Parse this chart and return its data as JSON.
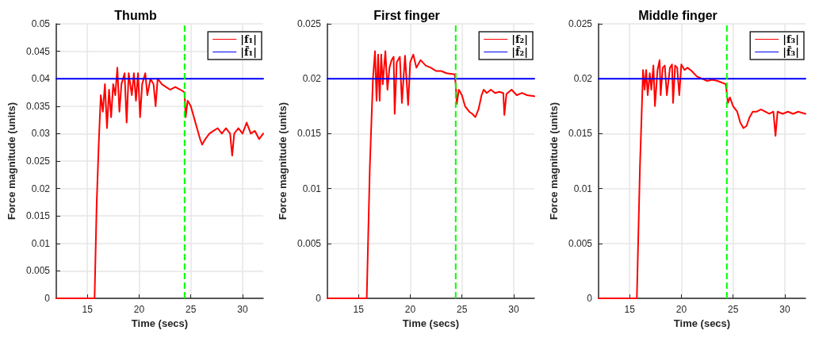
{
  "chart_data": [
    {
      "type": "line",
      "title": "Thumb",
      "xlabel": "Time (secs)",
      "ylabel": "Force magnitude (units)",
      "xlim": [
        12,
        32
      ],
      "xticks": [
        15,
        20,
        25,
        30
      ],
      "ylim": [
        0,
        0.05
      ],
      "yticks": [
        0,
        0.005,
        0.01,
        0.015,
        0.02,
        0.025,
        0.03,
        0.035,
        0.04,
        0.045,
        0.05
      ],
      "grid": true,
      "legend": "top right",
      "marker": "none",
      "line_style": "solid",
      "ref_lines": [
        {
          "axis": "x",
          "value": 24.4,
          "color": "#00ff00",
          "line_style": "dashed"
        }
      ],
      "series": [
        {
          "name": "|f₁|",
          "color": "#ff0000",
          "x": [
            12,
            15.7,
            15.9,
            16.1,
            16.3,
            16.5,
            16.7,
            16.9,
            17.1,
            17.3,
            17.5,
            17.7,
            17.9,
            18.1,
            18.3,
            18.6,
            18.8,
            19.0,
            19.3,
            19.5,
            19.7,
            19.9,
            20.1,
            20.3,
            20.6,
            20.8,
            21.1,
            21.4,
            21.6,
            21.8,
            22.2,
            22.6,
            23.0,
            23.5,
            24.0,
            24.4,
            24.5,
            24.7,
            25.0,
            25.3,
            25.6,
            25.9,
            26.1,
            26.4,
            26.8,
            27.2,
            27.6,
            28.0,
            28.4,
            28.8,
            29.0,
            29.2,
            29.6,
            30.0,
            30.4,
            30.8,
            31.2,
            31.6,
            32
          ],
          "values": [
            0,
            0,
            0.017,
            0.028,
            0.037,
            0.034,
            0.039,
            0.031,
            0.038,
            0.033,
            0.039,
            0.037,
            0.042,
            0.034,
            0.039,
            0.041,
            0.032,
            0.041,
            0.037,
            0.041,
            0.036,
            0.041,
            0.033,
            0.039,
            0.041,
            0.037,
            0.04,
            0.039,
            0.035,
            0.04,
            0.039,
            0.0385,
            0.038,
            0.0385,
            0.038,
            0.0375,
            0.033,
            0.036,
            0.035,
            0.033,
            0.031,
            0.029,
            0.028,
            0.029,
            0.03,
            0.0305,
            0.031,
            0.03,
            0.031,
            0.03,
            0.026,
            0.03,
            0.031,
            0.03,
            0.032,
            0.03,
            0.0305,
            0.029,
            0.03
          ]
        },
        {
          "name": "|f̄₁|",
          "color": "#0000ff",
          "x": [
            12,
            32
          ],
          "values": [
            0.04,
            0.04
          ]
        }
      ]
    },
    {
      "type": "line",
      "title": "First finger",
      "xlabel": "Time (secs)",
      "ylabel": "Force magnitude (units)",
      "xlim": [
        12,
        32
      ],
      "xticks": [
        15,
        20,
        25,
        30
      ],
      "ylim": [
        0,
        0.025
      ],
      "yticks": [
        0,
        0.005,
        0.01,
        0.015,
        0.02,
        0.025
      ],
      "grid": true,
      "legend": "top right",
      "marker": "none",
      "line_style": "solid",
      "ref_lines": [
        {
          "axis": "x",
          "value": 24.4,
          "color": "#00ff00",
          "line_style": "dashed"
        }
      ],
      "series": [
        {
          "name": "|f₂|",
          "color": "#ff0000",
          "x": [
            12,
            15.8,
            16.1,
            16.4,
            16.6,
            16.75,
            16.9,
            17.05,
            17.2,
            17.35,
            17.6,
            17.8,
            18.0,
            18.2,
            18.4,
            18.5,
            18.7,
            19.0,
            19.2,
            19.5,
            19.8,
            20.0,
            20.3,
            20.6,
            21.0,
            21.5,
            22.0,
            22.5,
            23.0,
            23.5,
            24.3,
            24.4,
            24.5,
            24.7,
            25.0,
            25.3,
            25.7,
            26.0,
            26.3,
            26.6,
            26.9,
            27.1,
            27.4,
            27.8,
            28.2,
            28.6,
            29.0,
            29.1,
            29.3,
            29.8,
            30.3,
            30.8,
            31.3,
            32
          ],
          "values": [
            0,
            0,
            0.012,
            0.02,
            0.0225,
            0.018,
            0.0222,
            0.018,
            0.0222,
            0.0195,
            0.0225,
            0.019,
            0.021,
            0.0217,
            0.022,
            0.0168,
            0.0215,
            0.022,
            0.0178,
            0.0221,
            0.0176,
            0.0215,
            0.0222,
            0.021,
            0.0217,
            0.0212,
            0.021,
            0.0207,
            0.0207,
            0.0205,
            0.0204,
            0.0195,
            0.0177,
            0.019,
            0.0185,
            0.0175,
            0.017,
            0.0168,
            0.0165,
            0.0172,
            0.0185,
            0.019,
            0.0187,
            0.019,
            0.0187,
            0.0188,
            0.0187,
            0.0167,
            0.0186,
            0.019,
            0.0185,
            0.0187,
            0.0185,
            0.0184
          ]
        },
        {
          "name": "|f̄₂|",
          "color": "#0000ff",
          "x": [
            12,
            32
          ],
          "values": [
            0.02,
            0.02
          ]
        }
      ]
    },
    {
      "type": "line",
      "title": "Middle finger",
      "xlabel": "Time (secs)",
      "ylabel": "Force magnitude (units)",
      "xlim": [
        12,
        32
      ],
      "xticks": [
        15,
        20,
        25,
        30
      ],
      "ylim": [
        0,
        0.025
      ],
      "yticks": [
        0,
        0.005,
        0.01,
        0.015,
        0.02,
        0.025
      ],
      "grid": true,
      "legend": "top right",
      "marker": "none",
      "line_style": "solid",
      "ref_lines": [
        {
          "axis": "x",
          "value": 24.4,
          "color": "#00ff00",
          "line_style": "dashed"
        }
      ],
      "series": [
        {
          "name": "|f₃|",
          "color": "#ff0000",
          "x": [
            12,
            15.7,
            16.0,
            16.3,
            16.45,
            16.6,
            16.75,
            16.95,
            17.1,
            17.3,
            17.45,
            17.7,
            17.9,
            18.0,
            18.2,
            18.4,
            18.6,
            18.9,
            19.1,
            19.2,
            19.4,
            19.6,
            19.8,
            20.0,
            20.3,
            20.6,
            21.0,
            21.5,
            22.0,
            22.5,
            23.0,
            23.5,
            24.3,
            24.5,
            24.7,
            25.0,
            25.4,
            25.7,
            26.0,
            26.3,
            26.6,
            26.9,
            27.3,
            27.7,
            28.1,
            28.5,
            28.9,
            29.1,
            29.3,
            29.8,
            30.3,
            30.8,
            31.3,
            32
          ],
          "values": [
            0,
            0,
            0.012,
            0.0208,
            0.019,
            0.0208,
            0.0185,
            0.0205,
            0.019,
            0.0212,
            0.0175,
            0.0208,
            0.0217,
            0.0185,
            0.021,
            0.0212,
            0.0185,
            0.021,
            0.0213,
            0.0178,
            0.0212,
            0.021,
            0.0185,
            0.0213,
            0.0208,
            0.021,
            0.0207,
            0.0202,
            0.02,
            0.0198,
            0.0199,
            0.0198,
            0.0195,
            0.0178,
            0.0183,
            0.0175,
            0.017,
            0.016,
            0.0155,
            0.0157,
            0.0165,
            0.017,
            0.017,
            0.0172,
            0.017,
            0.0168,
            0.017,
            0.0148,
            0.017,
            0.0168,
            0.017,
            0.0168,
            0.017,
            0.0168
          ]
        },
        {
          "name": "|f̄₃|",
          "color": "#0000ff",
          "x": [
            12,
            32
          ],
          "values": [
            0.02,
            0.02
          ]
        }
      ]
    }
  ]
}
